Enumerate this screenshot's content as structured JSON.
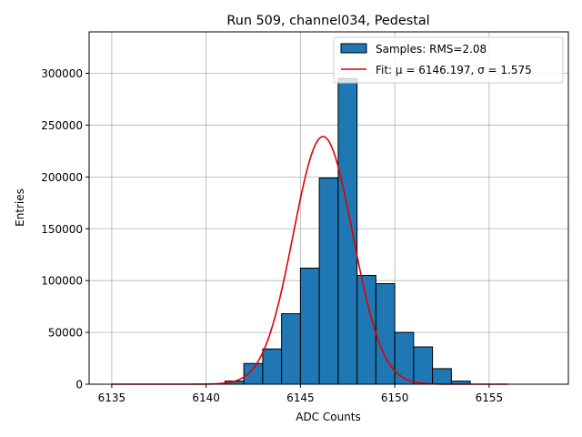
{
  "chart_data": {
    "type": "bar",
    "title": "Run 509, channel034, Pedestal",
    "xlabel": "ADC Counts",
    "ylabel": "Entries",
    "xlim": [
      6133.8,
      6159.2
    ],
    "ylim": [
      0,
      340000
    ],
    "xticks": [
      6135,
      6140,
      6145,
      6150,
      6155
    ],
    "yticks": [
      0,
      50000,
      100000,
      150000,
      200000,
      250000,
      300000
    ],
    "grid": true,
    "legend_position": "upper right",
    "colors": {
      "bars": "#1f77b4",
      "bar_edge": "#000000",
      "fit": "#e00000",
      "grid": "#b0b0b0"
    },
    "series": [
      {
        "name": "Samples: RMS=2.08",
        "kind": "histogram",
        "bin_width": 1,
        "bins": [
          {
            "x0": 6141,
            "count": 3000
          },
          {
            "x0": 6142,
            "count": 20000
          },
          {
            "x0": 6143,
            "count": 34000
          },
          {
            "x0": 6144,
            "count": 68000
          },
          {
            "x0": 6145,
            "count": 112000
          },
          {
            "x0": 6146,
            "count": 199000
          },
          {
            "x0": 6147,
            "count": 295000
          },
          {
            "x0": 6148,
            "count": 105000
          },
          {
            "x0": 6149,
            "count": 97000
          },
          {
            "x0": 6150,
            "count": 50000
          },
          {
            "x0": 6151,
            "count": 36000
          },
          {
            "x0": 6152,
            "count": 15000
          },
          {
            "x0": 6153,
            "count": 3000
          }
        ]
      },
      {
        "name": "Fit: μ = 6146.197, σ = 1.575",
        "kind": "gaussian",
        "mu": 6146.197,
        "sigma": 1.575,
        "amplitude": 239000,
        "x_range": [
          6135,
          6156
        ]
      }
    ]
  }
}
